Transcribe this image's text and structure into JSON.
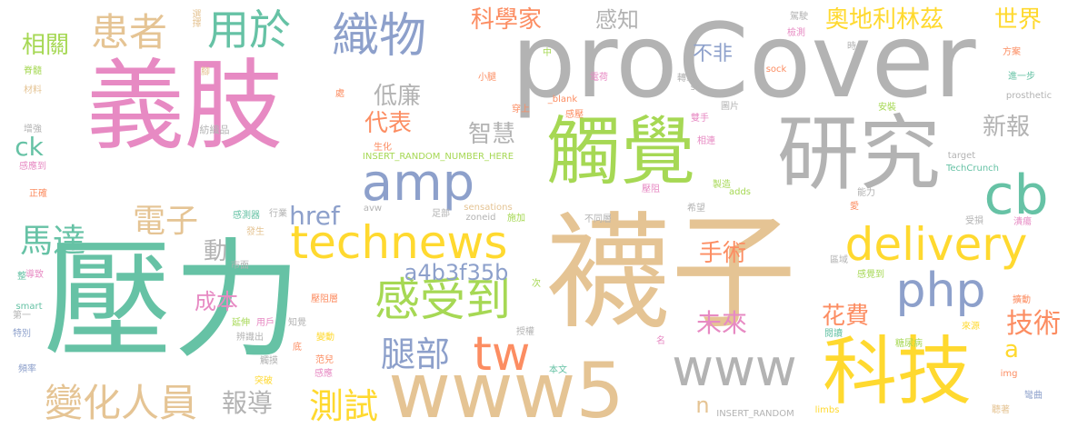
{
  "palette": {
    "pink": "#e78ac3",
    "green": "#66c2a5",
    "gray": "#b3b3b3",
    "tan": "#e5c494",
    "yellow": "#ffd92f",
    "lime": "#a6d854",
    "blue": "#8da0cb",
    "orange": "#fc8d62"
  },
  "words": [
    {
      "text": "義肢",
      "color": "pink"
    },
    {
      "text": "proCover",
      "color": "gray"
    },
    {
      "text": "壓力",
      "color": "green"
    },
    {
      "text": "襪子",
      "color": "tan"
    },
    {
      "text": "研究",
      "color": "gray"
    },
    {
      "text": "觸覺",
      "color": "lime"
    },
    {
      "text": "科技",
      "color": "yellow"
    },
    {
      "text": "www5",
      "color": "tan"
    },
    {
      "text": "technews",
      "color": "yellow"
    },
    {
      "text": "delivery",
      "color": "yellow"
    },
    {
      "text": "amp",
      "color": "blue"
    },
    {
      "text": "www",
      "color": "gray"
    },
    {
      "text": "織物",
      "color": "blue"
    },
    {
      "text": "用於",
      "color": "green"
    },
    {
      "text": "患者",
      "color": "tan"
    },
    {
      "text": "cb",
      "color": "green"
    },
    {
      "text": "php",
      "color": "blue"
    },
    {
      "text": "tw",
      "color": "orange"
    },
    {
      "text": "感受到",
      "color": "lime"
    },
    {
      "text": "電子",
      "color": "tan"
    },
    {
      "text": "馬達",
      "color": "green"
    },
    {
      "text": "腿部",
      "color": "blue"
    },
    {
      "text": "變化人員",
      "color": "tan"
    },
    {
      "text": "測試",
      "color": "yellow"
    },
    {
      "text": "奧地利林茲",
      "color": "yellow"
    },
    {
      "text": "科學家",
      "color": "orange"
    },
    {
      "text": "世界",
      "color": "yellow"
    },
    {
      "text": "相關",
      "color": "lime"
    },
    {
      "text": "感知",
      "color": "gray"
    },
    {
      "text": "不非",
      "color": "blue"
    },
    {
      "text": "低廉",
      "color": "gray"
    },
    {
      "text": "代表",
      "color": "orange"
    },
    {
      "text": "智慧",
      "color": "gray"
    },
    {
      "text": "新報",
      "color": "gray"
    },
    {
      "text": "ck",
      "color": "green"
    },
    {
      "text": "href",
      "color": "blue"
    },
    {
      "text": "動",
      "color": "gray"
    },
    {
      "text": "a4b3f35b",
      "color": "blue"
    },
    {
      "text": "手術",
      "color": "orange"
    },
    {
      "text": "成本",
      "color": "pink"
    },
    {
      "text": "未來",
      "color": "pink"
    },
    {
      "text": "花費",
      "color": "orange"
    },
    {
      "text": "技術",
      "color": "orange"
    },
    {
      "text": "報導",
      "color": "gray"
    },
    {
      "text": "a",
      "color": "yellow"
    },
    {
      "text": "n",
      "color": "tan"
    },
    {
      "text": "選擇",
      "color": "tan"
    },
    {
      "text": "脊髓",
      "color": "lime"
    },
    {
      "text": "材料",
      "color": "tan"
    },
    {
      "text": "腳",
      "color": "tan"
    },
    {
      "text": "增強",
      "color": "gray"
    },
    {
      "text": "紡織品",
      "color": "gray"
    },
    {
      "text": "感應到",
      "color": "pink"
    },
    {
      "text": "正確",
      "color": "orange"
    },
    {
      "text": "導致",
      "color": "pink"
    },
    {
      "text": "整",
      "color": "green"
    },
    {
      "text": "smart",
      "color": "green"
    },
    {
      "text": "第一",
      "color": "gray"
    },
    {
      "text": "特別",
      "color": "blue"
    },
    {
      "text": "頻率",
      "color": "blue"
    },
    {
      "text": "行業",
      "color": "gray"
    },
    {
      "text": "感測器",
      "color": "green"
    },
    {
      "text": "發生",
      "color": "tan"
    },
    {
      "text": "市面",
      "color": "gray"
    },
    {
      "text": "用戶",
      "color": "pink"
    },
    {
      "text": "延伸",
      "color": "lime"
    },
    {
      "text": "辨識出",
      "color": "gray"
    },
    {
      "text": "知覺",
      "color": "gray"
    },
    {
      "text": "觸摸",
      "color": "gray"
    },
    {
      "text": "底",
      "color": "orange"
    },
    {
      "text": "突破",
      "color": "yellow"
    },
    {
      "text": "變動",
      "color": "yellow"
    },
    {
      "text": "范兒",
      "color": "orange"
    },
    {
      "text": "感應",
      "color": "pink"
    },
    {
      "text": "壓阻層",
      "color": "orange"
    },
    {
      "text": "INSERT_RANDOM_NUMBER_HERE",
      "color": "lime"
    },
    {
      "text": "INSERT_RANDOM",
      "color": "gray"
    },
    {
      "text": "小腿",
      "color": "orange"
    },
    {
      "text": "_blank",
      "color": "orange"
    },
    {
      "text": "穿上",
      "color": "orange"
    },
    {
      "text": "生化",
      "color": "orange"
    },
    {
      "text": "感壓",
      "color": "orange"
    },
    {
      "text": "中",
      "color": "lime"
    },
    {
      "text": "電荷",
      "color": "pink"
    },
    {
      "text": "轉載",
      "color": "gray"
    },
    {
      "text": "src",
      "color": "gray"
    },
    {
      "text": "sock",
      "color": "orange"
    },
    {
      "text": "處",
      "color": "orange"
    },
    {
      "text": "sensations",
      "color": "tan"
    },
    {
      "text": "zoneid",
      "color": "gray"
    },
    {
      "text": "足部",
      "color": "gray"
    },
    {
      "text": "avw",
      "color": "gray"
    },
    {
      "text": "施加",
      "color": "lime"
    },
    {
      "text": "不同層",
      "color": "gray"
    },
    {
      "text": "壓阻",
      "color": "pink"
    },
    {
      "text": "次",
      "color": "lime"
    },
    {
      "text": "授權",
      "color": "gray"
    },
    {
      "text": "名",
      "color": "pink"
    },
    {
      "text": "本文",
      "color": "green"
    },
    {
      "text": "駕駛",
      "color": "gray"
    },
    {
      "text": "檢測",
      "color": "pink"
    },
    {
      "text": "時",
      "color": "gray"
    },
    {
      "text": "圖片",
      "color": "gray"
    },
    {
      "text": "雙手",
      "color": "pink"
    },
    {
      "text": "相連",
      "color": "pink"
    },
    {
      "text": "製造",
      "color": "lime"
    },
    {
      "text": "adds",
      "color": "lime"
    },
    {
      "text": "希望",
      "color": "gray"
    },
    {
      "text": "能力",
      "color": "gray"
    },
    {
      "text": "愛",
      "color": "orange"
    },
    {
      "text": "區域",
      "color": "gray"
    },
    {
      "text": "感覺到",
      "color": "lime"
    },
    {
      "text": "糖尿病",
      "color": "lime"
    },
    {
      "text": "閱讀",
      "color": "green"
    },
    {
      "text": "limbs",
      "color": "yellow"
    },
    {
      "text": "方案",
      "color": "orange"
    },
    {
      "text": "進一步",
      "color": "green"
    },
    {
      "text": "prosthetic",
      "color": "gray"
    },
    {
      "text": "安裝",
      "color": "lime"
    },
    {
      "text": "target",
      "color": "gray"
    },
    {
      "text": "TechCrunch",
      "color": "green"
    },
    {
      "text": "受損",
      "color": "gray"
    },
    {
      "text": "潰瘍",
      "color": "pink"
    },
    {
      "text": "擴動",
      "color": "orange"
    },
    {
      "text": "來源",
      "color": "yellow"
    },
    {
      "text": "img",
      "color": "orange"
    },
    {
      "text": "彎曲",
      "color": "blue"
    },
    {
      "text": "聽著",
      "color": "tan"
    }
  ]
}
